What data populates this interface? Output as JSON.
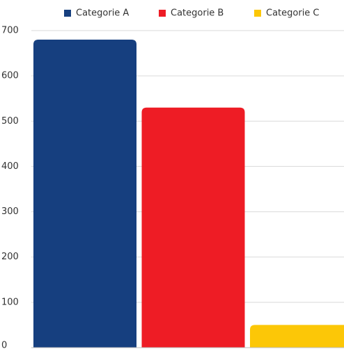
{
  "chart_data": {
    "type": "bar",
    "categories": [
      null
    ],
    "series": [
      {
        "name": "Categorie A",
        "color": "#163f7f",
        "values": [
          680
        ]
      },
      {
        "name": "Categorie B",
        "color": "#ee1c25",
        "values": [
          530
        ]
      },
      {
        "name": "Categorie C",
        "color": "#fcc707",
        "values": [
          50
        ]
      }
    ],
    "ylim": [
      0,
      700
    ],
    "yticks": [
      0,
      100,
      200,
      300,
      400,
      500,
      600,
      700
    ],
    "grid": true,
    "legend": "top"
  }
}
